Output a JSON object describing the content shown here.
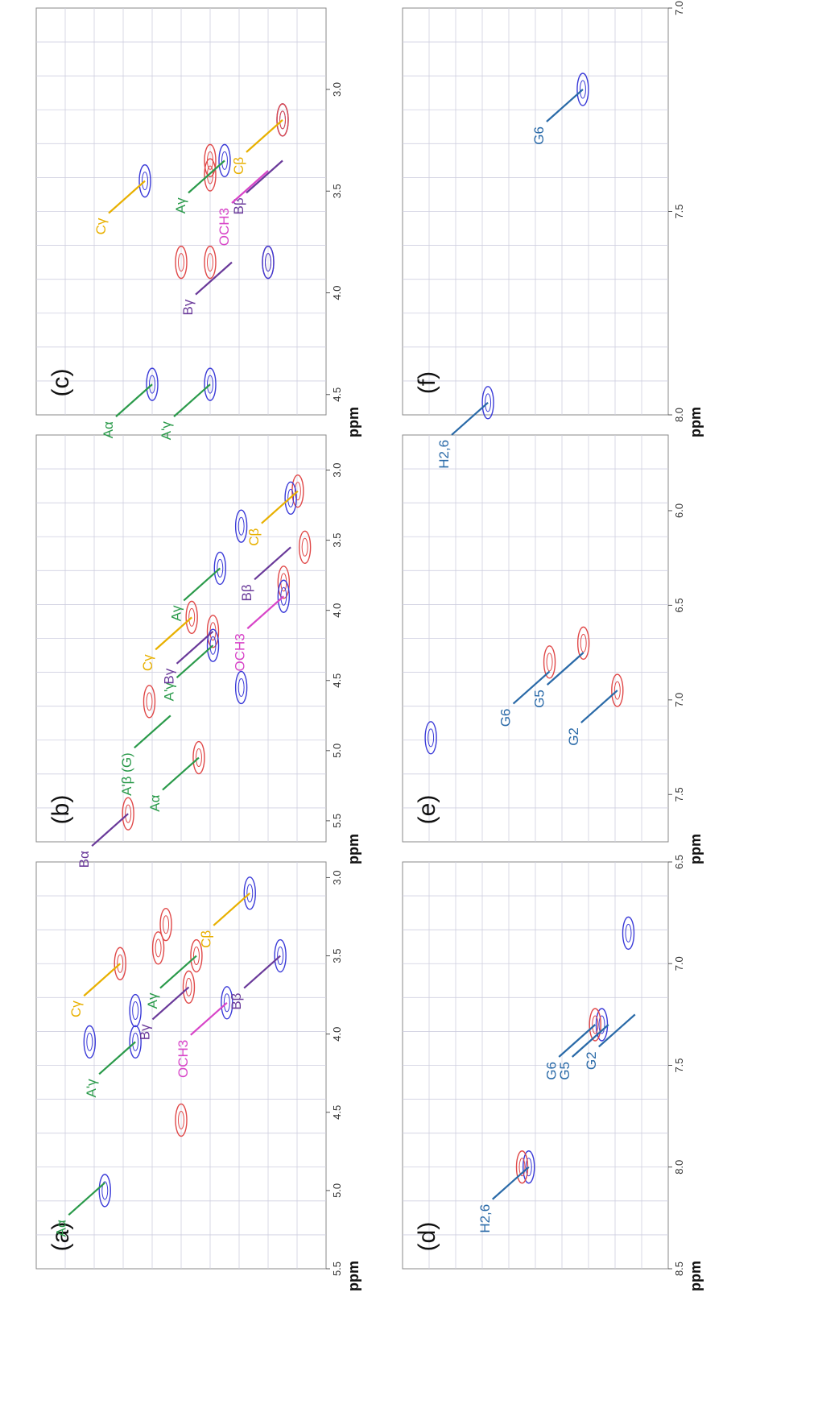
{
  "figure": {
    "ppm_label": "ppm",
    "colors": {
      "positive": "#e04848",
      "negative": "#3a3ad8",
      "grid": "#cfcfe0"
    }
  },
  "chart_data": [
    {
      "type": "scatter",
      "panel": "(a)",
      "axis_label": "ppm",
      "xlim": [
        5.5,
        2.9
      ],
      "ylim": [
        45,
        83
      ],
      "ticks": [
        "5.5",
        "5.0",
        "4.5",
        "4.0",
        "3.5",
        "3.0"
      ],
      "spots": [
        {
          "color": "negative",
          "x": 3.1,
          "y": 55
        },
        {
          "color": "negative",
          "x": 3.5,
          "y": 51
        },
        {
          "color": "negative",
          "x": 3.8,
          "y": 58
        },
        {
          "color": "negative",
          "x": 4.05,
          "y": 70
        },
        {
          "color": "negative",
          "x": 3.85,
          "y": 70
        },
        {
          "color": "negative",
          "x": 4.05,
          "y": 76
        },
        {
          "color": "negative",
          "x": 5.0,
          "y": 74
        },
        {
          "color": "positive",
          "x": 3.5,
          "y": 62
        },
        {
          "color": "positive",
          "x": 3.3,
          "y": 66
        },
        {
          "color": "positive",
          "x": 3.45,
          "y": 67
        },
        {
          "color": "positive",
          "x": 3.7,
          "y": 63
        },
        {
          "color": "positive",
          "x": 3.55,
          "y": 72
        },
        {
          "color": "positive",
          "x": 4.55,
          "y": 64
        }
      ],
      "annotations": [
        {
          "label": "Bβ",
          "group": "B",
          "x": 3.5,
          "y": 51
        },
        {
          "label": "OCH3",
          "group": "OCH",
          "x": 3.8,
          "y": 58
        },
        {
          "label": "Cβ",
          "group": "C",
          "x": 3.1,
          "y": 55
        },
        {
          "label": "Aγ",
          "group": "A",
          "x": 3.5,
          "y": 62
        },
        {
          "label": "Bγ",
          "group": "B",
          "x": 3.7,
          "y": 63
        },
        {
          "label": "Cγ",
          "group": "C",
          "x": 3.55,
          "y": 72
        },
        {
          "label": "A'γ",
          "group": "A",
          "x": 4.05,
          "y": 70
        },
        {
          "label": "Aα",
          "group": "A",
          "x": 4.95,
          "y": 74
        }
      ]
    },
    {
      "type": "scatter",
      "panel": "(b)",
      "axis_label": "ppm",
      "xlim": [
        5.65,
        2.75
      ],
      "ylim": [
        50,
        91
      ],
      "ticks": [
        "5.5",
        "5.0",
        "4.5",
        "4.0",
        "3.5",
        "3.0"
      ],
      "spots": [
        {
          "color": "positive",
          "x": 3.15,
          "y": 54
        },
        {
          "color": "negative",
          "x": 3.2,
          "y": 55
        },
        {
          "color": "positive",
          "x": 3.8,
          "y": 56
        },
        {
          "color": "negative",
          "x": 3.9,
          "y": 56
        },
        {
          "color": "positive",
          "x": 3.55,
          "y": 53
        },
        {
          "color": "negative",
          "x": 3.7,
          "y": 65
        },
        {
          "color": "negative",
          "x": 3.4,
          "y": 62
        },
        {
          "color": "positive",
          "x": 4.15,
          "y": 66
        },
        {
          "color": "negative",
          "x": 4.25,
          "y": 66
        },
        {
          "color": "positive",
          "x": 4.05,
          "y": 69
        },
        {
          "color": "negative",
          "x": 4.55,
          "y": 62
        },
        {
          "color": "positive",
          "x": 5.05,
          "y": 68
        },
        {
          "color": "positive",
          "x": 4.65,
          "y": 75
        },
        {
          "color": "positive",
          "x": 5.45,
          "y": 78
        }
      ],
      "annotations": [
        {
          "label": "Cβ",
          "group": "C",
          "x": 3.15,
          "y": 54
        },
        {
          "label": "Bβ",
          "group": "B",
          "x": 3.55,
          "y": 55
        },
        {
          "label": "OCH3",
          "group": "OCH",
          "x": 3.9,
          "y": 56
        },
        {
          "label": "Aγ",
          "group": "A",
          "x": 3.7,
          "y": 65
        },
        {
          "label": "A'γ",
          "group": "A",
          "x": 4.25,
          "y": 66
        },
        {
          "label": "Cγ",
          "group": "C",
          "x": 4.05,
          "y": 69
        },
        {
          "label": "Bγ",
          "group": "B",
          "x": 4.15,
          "y": 66
        },
        {
          "label": "Aα",
          "group": "A",
          "x": 5.05,
          "y": 68
        },
        {
          "label": "A'β (G)",
          "group": "A",
          "x": 4.75,
          "y": 72
        },
        {
          "label": "Bα",
          "group": "B",
          "x": 5.45,
          "y": 78
        }
      ]
    },
    {
      "type": "scatter",
      "panel": "(c)",
      "axis_label": "ppm",
      "xlim": [
        4.6,
        2.6
      ],
      "ylim": [
        50,
        90
      ],
      "ticks": [
        "4.5",
        "4.0",
        "3.5",
        "3.0"
      ],
      "spots": [
        {
          "color": "negative",
          "x": 3.15,
          "y": 56
        },
        {
          "color": "positive",
          "x": 3.15,
          "y": 56
        },
        {
          "color": "negative",
          "x": 3.35,
          "y": 64
        },
        {
          "color": "positive",
          "x": 3.35,
          "y": 66
        },
        {
          "color": "positive",
          "x": 3.42,
          "y": 66
        },
        {
          "color": "negative",
          "x": 3.45,
          "y": 75
        },
        {
          "color": "positive",
          "x": 3.85,
          "y": 58
        },
        {
          "color": "negative",
          "x": 3.85,
          "y": 58
        },
        {
          "color": "positive",
          "x": 3.85,
          "y": 66
        },
        {
          "color": "positive",
          "x": 3.85,
          "y": 70
        },
        {
          "color": "negative",
          "x": 4.45,
          "y": 66
        },
        {
          "color": "negative",
          "x": 4.45,
          "y": 74
        }
      ],
      "annotations": [
        {
          "label": "Cβ",
          "group": "C",
          "x": 3.15,
          "y": 56
        },
        {
          "label": "Aγ",
          "group": "A",
          "x": 3.35,
          "y": 64
        },
        {
          "label": "Cγ",
          "group": "C",
          "x": 3.45,
          "y": 75
        },
        {
          "label": "Bβ",
          "group": "B",
          "x": 3.35,
          "y": 56
        },
        {
          "label": "OCH3",
          "group": "OCH",
          "x": 3.4,
          "y": 58
        },
        {
          "label": "Bγ",
          "group": "B",
          "x": 3.85,
          "y": 63
        },
        {
          "label": "A'γ",
          "group": "A",
          "x": 4.45,
          "y": 66
        },
        {
          "label": "Aα",
          "group": "A",
          "x": 4.45,
          "y": 74
        }
      ]
    },
    {
      "type": "scatter",
      "panel": "(d)",
      "axis_label": "ppm",
      "xlim": [
        8.5,
        6.5
      ],
      "ylim": [
        110,
        150
      ],
      "ticks": [
        "8.5",
        "8.0",
        "7.5",
        "7.0",
        "6.5"
      ],
      "spots": [
        {
          "color": "negative",
          "x": 7.3,
          "y": 120
        },
        {
          "color": "positive",
          "x": 7.3,
          "y": 121
        },
        {
          "color": "negative",
          "x": 8.0,
          "y": 131
        },
        {
          "color": "positive",
          "x": 8.0,
          "y": 132
        },
        {
          "color": "negative",
          "x": 6.85,
          "y": 116
        }
      ],
      "annotations": [
        {
          "label": "G2",
          "group": "G",
          "x": 7.25,
          "y": 115
        },
        {
          "label": "G5",
          "group": "G",
          "x": 7.3,
          "y": 119
        },
        {
          "label": "G6",
          "group": "G",
          "x": 7.3,
          "y": 121
        },
        {
          "label": "H2,6",
          "group": "G",
          "x": 8.0,
          "y": 131
        }
      ]
    },
    {
      "type": "scatter",
      "panel": "(e)",
      "axis_label": "ppm",
      "xlim": [
        7.75,
        5.6
      ],
      "ylim": [
        105,
        152
      ],
      "ticks": [
        "7.5",
        "7.0",
        "6.5",
        "6.0"
      ],
      "spots": [
        {
          "color": "positive",
          "x": 6.95,
          "y": 114
        },
        {
          "color": "positive",
          "x": 6.7,
          "y": 120
        },
        {
          "color": "positive",
          "x": 6.8,
          "y": 126
        },
        {
          "color": "negative",
          "x": 7.2,
          "y": 147
        }
      ],
      "annotations": [
        {
          "label": "G2",
          "group": "G",
          "x": 6.95,
          "y": 114
        },
        {
          "label": "G5",
          "group": "G",
          "x": 6.75,
          "y": 120
        },
        {
          "label": "G6",
          "group": "G",
          "x": 6.85,
          "y": 126
        }
      ]
    },
    {
      "type": "scatter",
      "panel": "(f)",
      "axis_label": "ppm",
      "xlim": [
        8.0,
        7.0
      ],
      "ylim": [
        112,
        140
      ],
      "ticks": [
        "8.0",
        "7.5",
        "7.0"
      ],
      "spots": [
        {
          "color": "negative",
          "x": 7.2,
          "y": 121
        },
        {
          "color": "negative",
          "x": 7.97,
          "y": 131
        }
      ],
      "annotations": [
        {
          "label": "G6",
          "group": "G",
          "x": 7.2,
          "y": 121
        },
        {
          "label": "H2,6",
          "group": "G",
          "x": 7.97,
          "y": 131
        }
      ]
    }
  ]
}
